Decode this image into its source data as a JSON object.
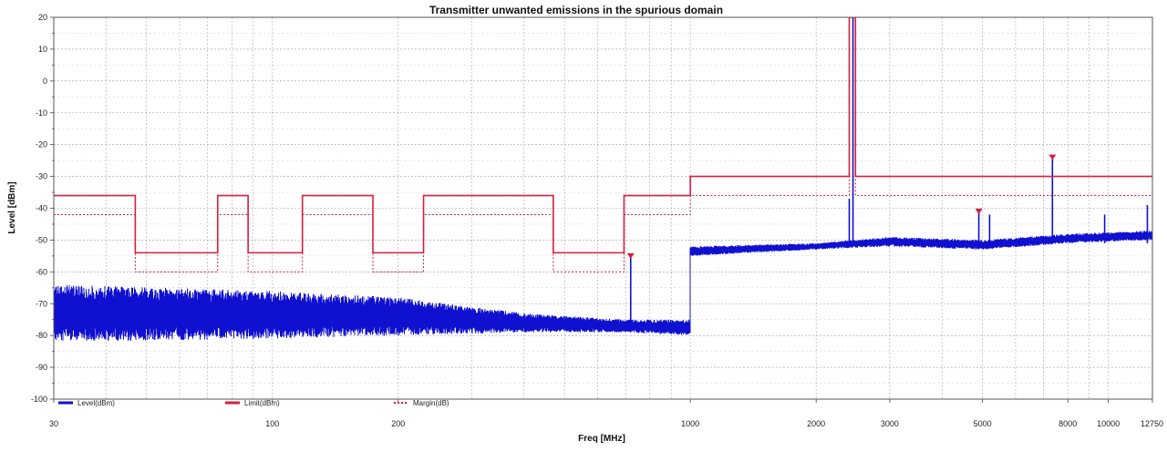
{
  "chart_data": {
    "type": "line",
    "title": "Transmitter unwanted emissions in the spurious domain",
    "xlabel": "Freq [MHz]",
    "ylabel": "Level [dBm]",
    "xscale": "log",
    "xlim": [
      30,
      12750
    ],
    "ylim": [
      -100,
      20
    ],
    "x_ticks": [
      {
        "value": 30,
        "label": "30"
      },
      {
        "value": 100,
        "label": "100"
      },
      {
        "value": 200,
        "label": "200"
      },
      {
        "value": 1000,
        "label": "1000"
      },
      {
        "value": 2000,
        "label": "2000"
      },
      {
        "value": 3000,
        "label": "3000"
      },
      {
        "value": 5000,
        "label": "5000"
      },
      {
        "value": 8000,
        "label": "8000"
      },
      {
        "value": 10000,
        "label": "10000"
      },
      {
        "value": 12750,
        "label": "12750"
      }
    ],
    "y_ticks": [
      20,
      10,
      0,
      -10,
      -20,
      -30,
      -40,
      -50,
      -60,
      -70,
      -80,
      -90,
      -100
    ],
    "grid": true,
    "legend_position": "bottom-left",
    "series": [
      {
        "name": "Level(dBm)",
        "color": "#1010d0",
        "style": "noise",
        "segments": [
          {
            "x_start": 30,
            "x_end": 1000,
            "floor": [
              [
                30,
                -82
              ],
              [
                100,
                -81
              ],
              [
                200,
                -80
              ],
              [
                400,
                -79
              ],
              [
                700,
                -79
              ],
              [
                1000,
                -80
              ]
            ],
            "ceiling": [
              [
                30,
                -64
              ],
              [
                100,
                -66
              ],
              [
                200,
                -68
              ],
              [
                400,
                -73
              ],
              [
                700,
                -75
              ],
              [
                1000,
                -75
              ]
            ]
          },
          {
            "x_start": 1000,
            "x_end": 12750,
            "floor": [
              [
                1000,
                -55
              ],
              [
                2000,
                -53
              ],
              [
                3000,
                -52
              ],
              [
                5000,
                -53
              ],
              [
                8000,
                -51
              ],
              [
                12750,
                -50
              ]
            ],
            "ceiling": [
              [
                1000,
                -52
              ],
              [
                2000,
                -51
              ],
              [
                3000,
                -49
              ],
              [
                5000,
                -50
              ],
              [
                8000,
                -48
              ],
              [
                12750,
                -47
              ]
            ]
          }
        ],
        "spikes": [
          {
            "x": 720,
            "y": -55
          },
          {
            "x": 2400,
            "y": -37
          },
          {
            "x": 2450,
            "y": 20
          },
          {
            "x": 4900,
            "y": -41
          },
          {
            "x": 5200,
            "y": -42
          },
          {
            "x": 7350,
            "y": -24
          },
          {
            "x": 9800,
            "y": -42
          },
          {
            "x": 12400,
            "y": -39
          }
        ],
        "markers": [
          {
            "x": 720,
            "y": -55
          },
          {
            "x": 4900,
            "y": -41
          },
          {
            "x": 7350,
            "y": -24
          }
        ]
      },
      {
        "name": "Limit(dBm)",
        "color": "#d81e3c",
        "style": "solid",
        "steps": [
          [
            30,
            -36
          ],
          [
            47,
            -36
          ],
          [
            47,
            -54
          ],
          [
            74,
            -54
          ],
          [
            74,
            -36
          ],
          [
            87.5,
            -36
          ],
          [
            87.5,
            -54
          ],
          [
            118,
            -54
          ],
          [
            118,
            -36
          ],
          [
            174,
            -36
          ],
          [
            174,
            -54
          ],
          [
            230,
            -54
          ],
          [
            230,
            -36
          ],
          [
            470,
            -36
          ],
          [
            470,
            -54
          ],
          [
            694,
            -54
          ],
          [
            694,
            -36
          ],
          [
            1000,
            -36
          ],
          [
            1000,
            -30
          ],
          [
            2400,
            -30
          ],
          [
            2400,
            20
          ],
          [
            2483.5,
            20
          ],
          [
            2483.5,
            -30
          ],
          [
            12750,
            -30
          ]
        ]
      },
      {
        "name": "Margin(dB)",
        "color": "#d81e3c",
        "style": "dotted",
        "steps": [
          [
            30,
            -42
          ],
          [
            47,
            -42
          ],
          [
            47,
            -60
          ],
          [
            74,
            -60
          ],
          [
            74,
            -42
          ],
          [
            87.5,
            -42
          ],
          [
            87.5,
            -60
          ],
          [
            118,
            -60
          ],
          [
            118,
            -42
          ],
          [
            174,
            -42
          ],
          [
            174,
            -60
          ],
          [
            230,
            -60
          ],
          [
            230,
            -42
          ],
          [
            470,
            -42
          ],
          [
            470,
            -60
          ],
          [
            694,
            -60
          ],
          [
            694,
            -42
          ],
          [
            1000,
            -42
          ],
          [
            1000,
            -36
          ],
          [
            2400,
            -36
          ],
          [
            2400,
            20
          ],
          [
            2483.5,
            20
          ],
          [
            2483.5,
            -36
          ],
          [
            12750,
            -36
          ]
        ]
      }
    ]
  }
}
